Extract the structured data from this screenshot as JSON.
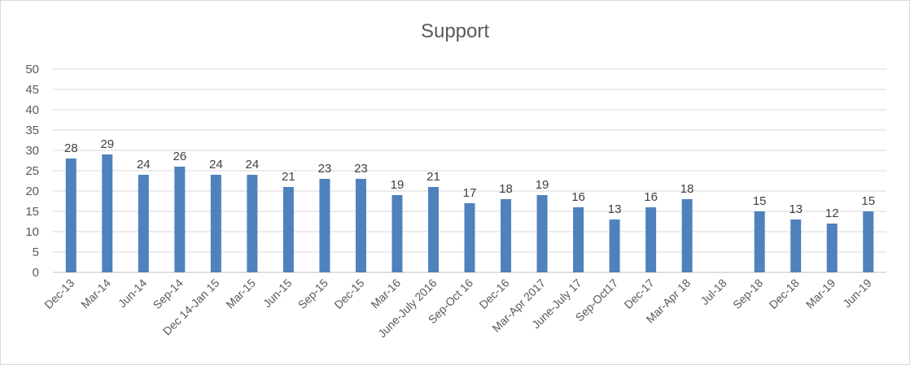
{
  "chart_data": {
    "type": "bar",
    "title": "Support",
    "xlabel": "",
    "ylabel": "",
    "ylim": [
      0,
      50
    ],
    "yticks": [
      0,
      5,
      10,
      15,
      20,
      25,
      30,
      35,
      40,
      45,
      50
    ],
    "grid": true,
    "legend": "none",
    "bar_color": "#4f81bd",
    "categories": [
      "Dec-13",
      "Mar-14",
      "Jun-14",
      "Sep-14",
      "Dec 14-Jan 15",
      "Mar-15",
      "Jun-15",
      "Sep-15",
      "Dec-15",
      "Mar-16",
      "June-July 2016",
      "Sep-Oct 16",
      "Dec-16",
      "Mar-Apr 2017",
      "June-July 17",
      "Sep-Oct17",
      "Dec-17",
      "Mar-Apr 18",
      "Jul-18",
      "Sep-18",
      "Dec-18",
      "Mar-19",
      "Jun-19"
    ],
    "values": [
      28,
      29,
      24,
      26,
      24,
      24,
      21,
      23,
      23,
      19,
      21,
      17,
      18,
      19,
      16,
      13,
      16,
      18,
      null,
      15,
      13,
      12,
      15
    ]
  }
}
